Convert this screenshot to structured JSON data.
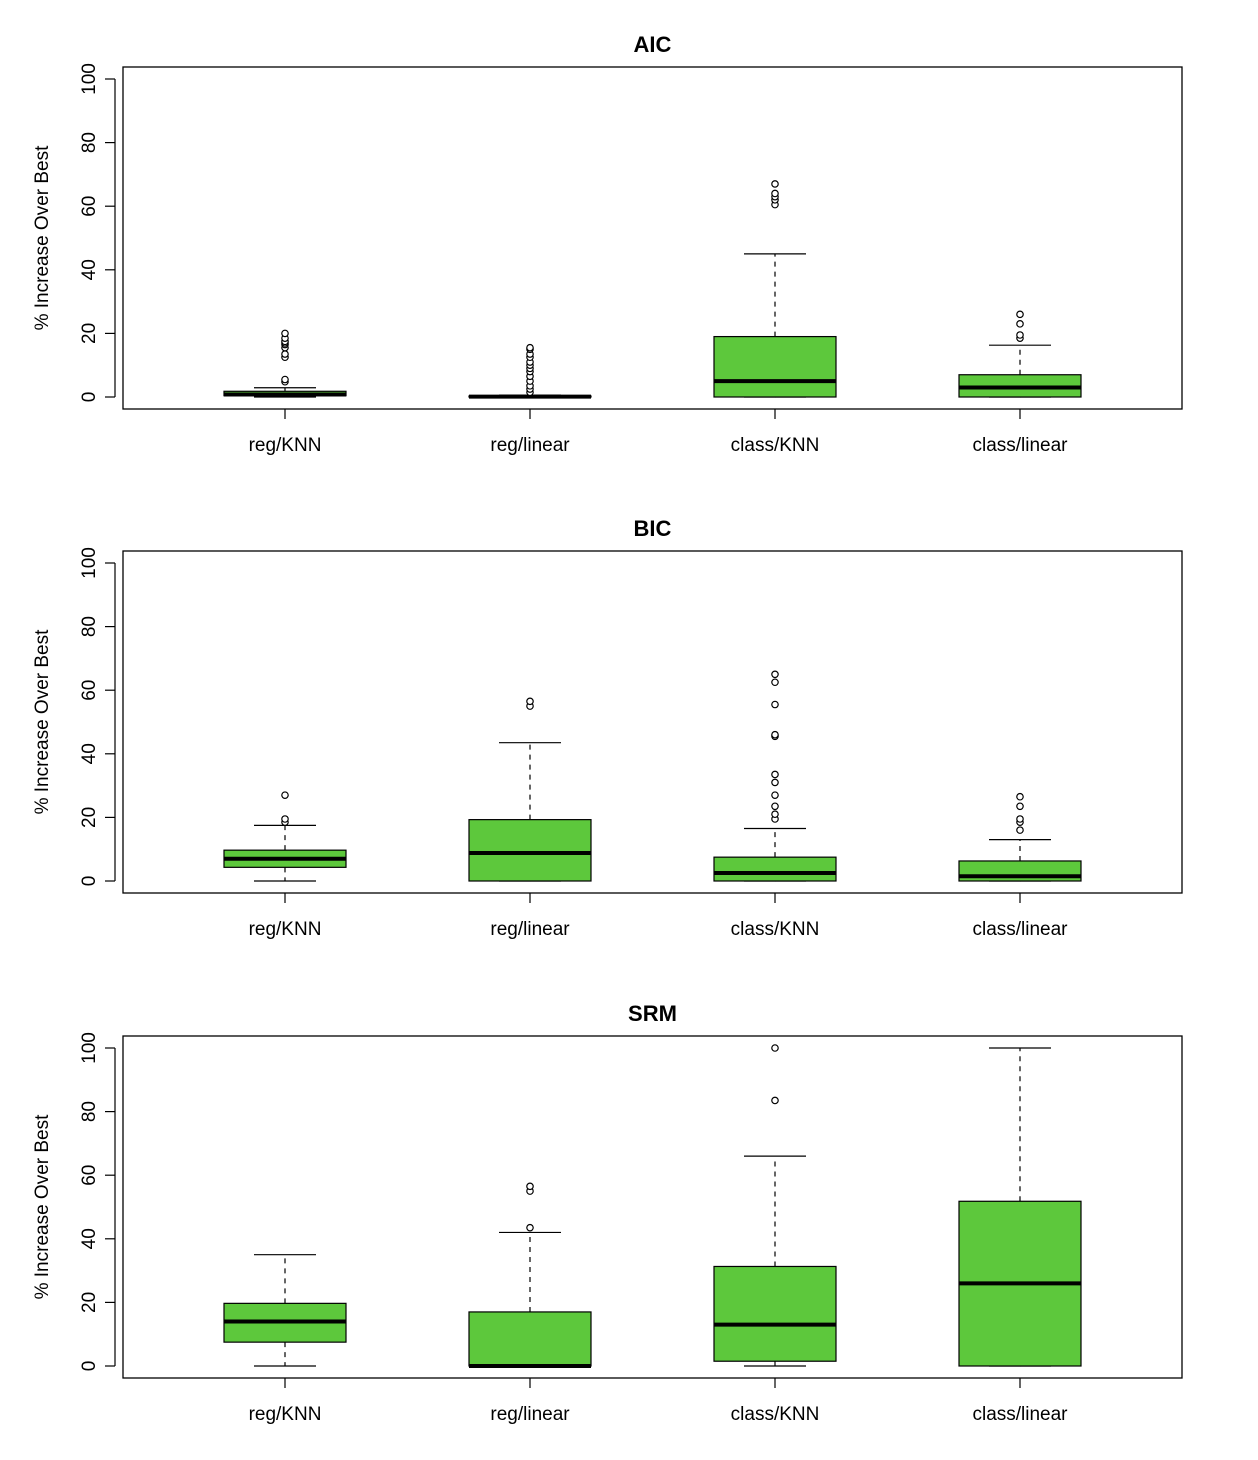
{
  "chart_data": [
    {
      "type": "boxplot",
      "title": "AIC",
      "ylabel": "% Increase Over Best",
      "ylim": [
        0,
        100
      ],
      "yticks": [
        0,
        20,
        40,
        60,
        80,
        100
      ],
      "categories": [
        "reg/KNN",
        "reg/linear",
        "class/KNN",
        "class/linear"
      ],
      "box_color": "#5dc83c",
      "boxes": [
        {
          "whisker_low": 0,
          "q1": 0.4,
          "median": 0.8,
          "q3": 1.8,
          "whisker_high": 2.9,
          "outliers": [
            4.8,
            5.5,
            12.5,
            13.5,
            15.5,
            16.5,
            17.0,
            17.5,
            18.5,
            20.0
          ]
        },
        {
          "whisker_low": 0,
          "q1": 0,
          "median": 0.1,
          "q3": 0.3,
          "whisker_high": 0.6,
          "outliers": [
            1.5,
            2.5,
            3.5,
            5.0,
            6.5,
            8.0,
            9.0,
            10.0,
            11.0,
            12.5,
            13.5,
            15.0,
            15.5
          ]
        },
        {
          "whisker_low": 0,
          "q1": 0,
          "median": 5.0,
          "q3": 19.0,
          "whisker_high": 45.0,
          "outliers": [
            60.5,
            62.0,
            63.0,
            64.0,
            67.0
          ]
        },
        {
          "whisker_low": 0,
          "q1": 0,
          "median": 3.0,
          "q3": 7.0,
          "whisker_high": 16.3,
          "outliers": [
            18.5,
            19.5,
            23.0,
            26.0
          ]
        }
      ]
    },
    {
      "type": "boxplot",
      "title": "BIC",
      "ylabel": "% Increase Over Best",
      "ylim": [
        0,
        100
      ],
      "yticks": [
        0,
        20,
        40,
        60,
        80,
        100
      ],
      "categories": [
        "reg/KNN",
        "reg/linear",
        "class/KNN",
        "class/linear"
      ],
      "box_color": "#5dc83c",
      "boxes": [
        {
          "whisker_low": 0,
          "q1": 4.3,
          "median": 7.0,
          "q3": 9.7,
          "whisker_high": 17.5,
          "outliers": [
            18.5,
            19.5,
            27.0
          ]
        },
        {
          "whisker_low": 0,
          "q1": 0,
          "median": 8.8,
          "q3": 19.3,
          "whisker_high": 43.5,
          "outliers": [
            55.0,
            56.5
          ]
        },
        {
          "whisker_low": 0,
          "q1": 0,
          "median": 2.5,
          "q3": 7.5,
          "whisker_high": 16.5,
          "outliers": [
            19.5,
            21.0,
            23.5,
            27.0,
            31.0,
            33.5,
            45.5,
            46.0,
            55.5,
            62.5,
            65.0
          ]
        },
        {
          "whisker_low": 0,
          "q1": 0,
          "median": 1.5,
          "q3": 6.3,
          "whisker_high": 13.0,
          "outliers": [
            16.0,
            18.5,
            19.5,
            23.5,
            26.5
          ]
        }
      ]
    },
    {
      "type": "boxplot",
      "title": "SRM",
      "ylabel": "% Increase Over Best",
      "ylim": [
        0,
        100
      ],
      "yticks": [
        0,
        20,
        40,
        60,
        80,
        100
      ],
      "categories": [
        "reg/KNN",
        "reg/linear",
        "class/KNN",
        "class/linear"
      ],
      "box_color": "#5dc83c",
      "boxes": [
        {
          "whisker_low": 0,
          "q1": 7.5,
          "median": 14.0,
          "q3": 19.7,
          "whisker_high": 35.0,
          "outliers": []
        },
        {
          "whisker_low": 0,
          "q1": 0,
          "median": 0,
          "q3": 17.0,
          "whisker_high": 42.0,
          "outliers": [
            43.5,
            55.0,
            56.5
          ]
        },
        {
          "whisker_low": 0,
          "q1": 1.5,
          "median": 13.0,
          "q3": 31.3,
          "whisker_high": 66.0,
          "outliers": [
            83.5,
            100.0
          ]
        },
        {
          "whisker_low": 0,
          "q1": 0,
          "median": 26.0,
          "q3": 51.8,
          "whisker_high": 100.0,
          "outliers": []
        }
      ]
    }
  ]
}
